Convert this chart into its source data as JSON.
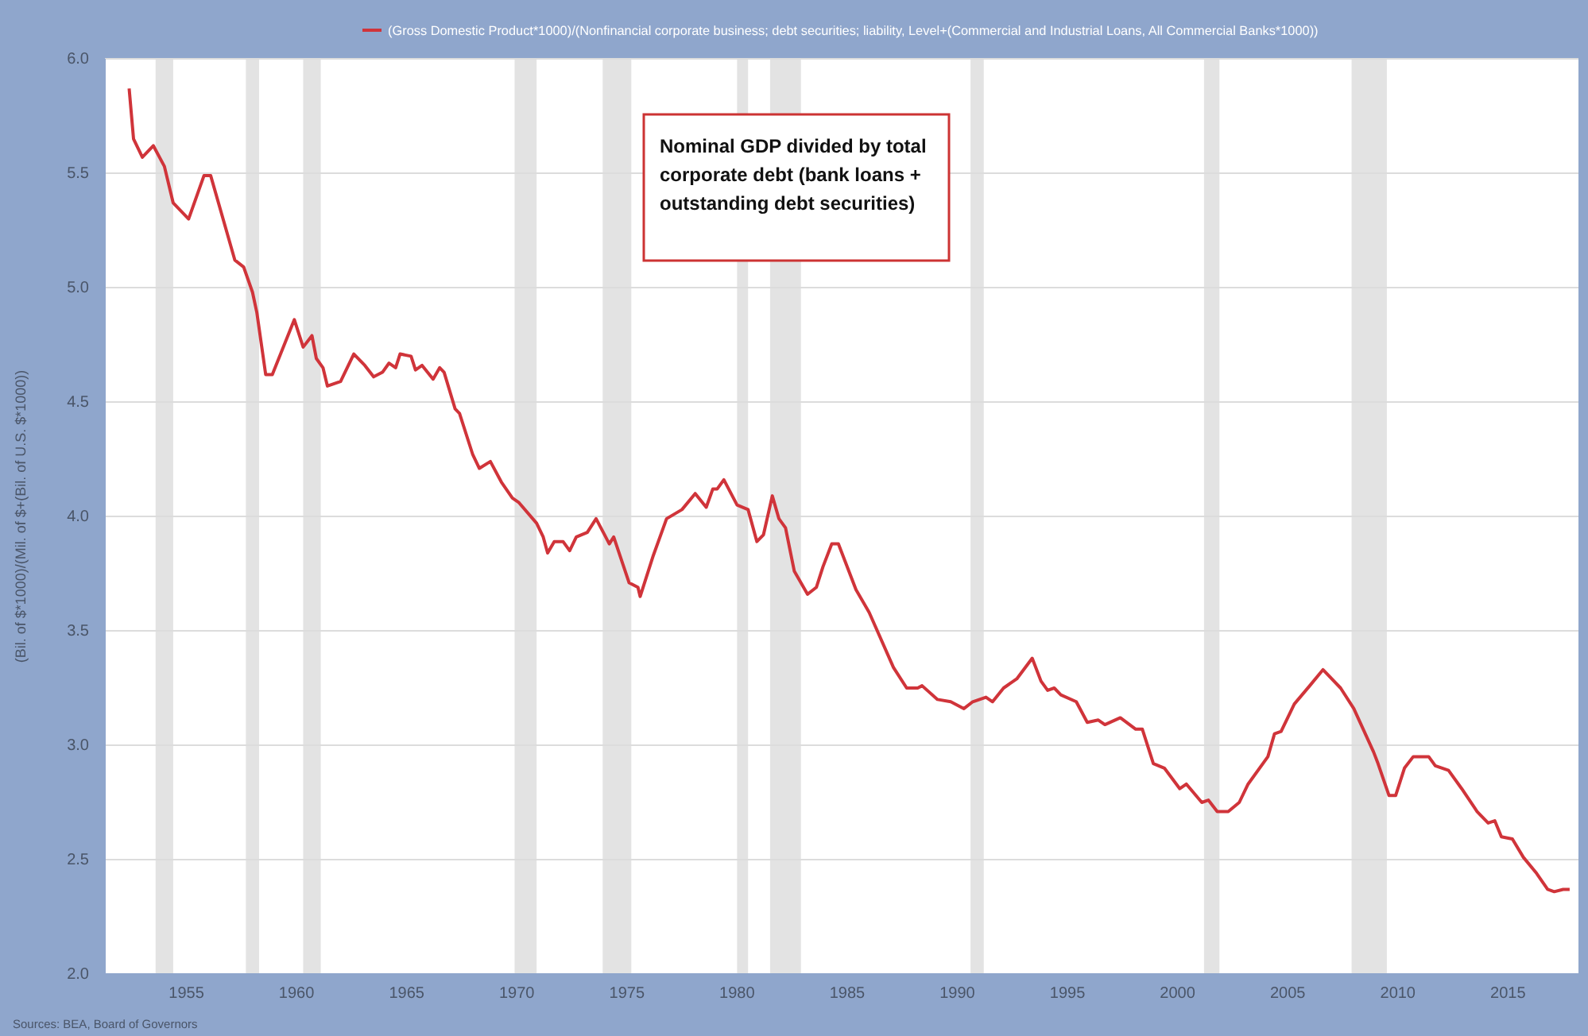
{
  "chart_data": {
    "type": "line",
    "ylabel": "(Bil. of $*1000)/(Mil. of $+(Bil. of U.S. $*1000))",
    "annotations": [
      "Nominal GDP divided by total corporate debt (bank loans + outstanding debt securities)",
      "Sources: BEA, Board of Governors"
    ],
    "x": [
      1952.4,
      1952.6,
      1953.0,
      1953.5,
      1954.0,
      1954.4,
      1955.1,
      1955.8,
      1956.1,
      1957.2,
      1957.6,
      1958.0,
      1958.2,
      1958.6,
      1958.9,
      1959.9,
      1960.3,
      1960.7,
      1960.9,
      1961.2,
      1961.4,
      1962.0,
      1962.6,
      1963.1,
      1963.5,
      1963.9,
      1964.2,
      1964.5,
      1964.7,
      1965.2,
      1965.4,
      1965.7,
      1966.2,
      1966.5,
      1966.7,
      1967.2,
      1967.4,
      1968.0,
      1968.3,
      1968.8,
      1969.3,
      1969.8,
      1970.1,
      1970.9,
      1971.2,
      1971.4,
      1971.7,
      1972.1,
      1972.4,
      1972.7,
      1973.2,
      1973.6,
      1974.2,
      1974.4,
      1975.1,
      1975.5,
      1975.6,
      1976.2,
      1976.8,
      1977.5,
      1978.1,
      1978.6,
      1978.9,
      1979.1,
      1979.4,
      1980.0,
      1980.5,
      1980.9,
      1981.2,
      1981.6,
      1981.9,
      1982.2,
      1982.6,
      1983.2,
      1983.6,
      1983.9,
      1984.3,
      1984.6,
      1985.4,
      1986.0,
      1987.1,
      1987.7,
      1988.2,
      1988.4,
      1989.1,
      1989.7,
      1990.3,
      1990.7,
      1991.3,
      1991.6,
      1992.1,
      1992.7,
      1993.4,
      1993.8,
      1994.1,
      1994.4,
      1994.7,
      1995.4,
      1995.9,
      1996.4,
      1996.7,
      1997.4,
      1998.1,
      1998.4,
      1998.9,
      1999.4,
      2000.1,
      2000.4,
      2001.1,
      2001.4,
      2001.8,
      2002.3,
      2002.8,
      2003.2,
      2004.1,
      2004.4,
      2004.7,
      2005.3,
      2006.0,
      2006.6,
      2007.4,
      2008.0,
      2008.9,
      2009.1,
      2009.6,
      2009.9,
      2010.3,
      2010.7,
      2011.0,
      2011.4,
      2011.7,
      2012.3,
      2012.9,
      2013.6,
      2014.1,
      2014.4,
      2014.7,
      2015.2,
      2015.7,
      2016.3,
      2016.8,
      2017.1,
      2017.5,
      2017.8
    ],
    "series": [
      {
        "name": "(Gross Domestic Product*1000)/(Nonfinancial corporate business; debt securities; liability, Level+(Commercial and Industrial Loans, All Commercial Banks*1000))",
        "color": "#d0343a",
        "values": [
          5.87,
          5.65,
          5.57,
          5.62,
          5.53,
          5.37,
          5.3,
          5.49,
          5.49,
          5.12,
          5.09,
          4.98,
          4.89,
          4.62,
          4.62,
          4.86,
          4.74,
          4.79,
          4.69,
          4.65,
          4.57,
          4.59,
          4.71,
          4.66,
          4.61,
          4.63,
          4.67,
          4.65,
          4.71,
          4.7,
          4.64,
          4.66,
          4.6,
          4.65,
          4.63,
          4.47,
          4.45,
          4.27,
          4.21,
          4.24,
          4.15,
          4.08,
          4.06,
          3.97,
          3.91,
          3.84,
          3.89,
          3.89,
          3.85,
          3.91,
          3.93,
          3.99,
          3.88,
          3.91,
          3.71,
          3.69,
          3.65,
          3.83,
          3.99,
          4.03,
          4.1,
          4.04,
          4.12,
          4.12,
          4.16,
          4.05,
          4.03,
          3.89,
          3.92,
          4.09,
          3.99,
          3.95,
          3.76,
          3.66,
          3.69,
          3.78,
          3.88,
          3.88,
          3.68,
          3.58,
          3.34,
          3.25,
          3.25,
          3.26,
          3.2,
          3.19,
          3.16,
          3.19,
          3.21,
          3.19,
          3.25,
          3.29,
          3.38,
          3.28,
          3.24,
          3.25,
          3.22,
          3.19,
          3.1,
          3.11,
          3.09,
          3.12,
          3.07,
          3.07,
          2.92,
          2.9,
          2.81,
          2.83,
          2.75,
          2.76,
          2.71,
          2.71,
          2.75,
          2.83,
          2.95,
          3.05,
          3.06,
          3.18,
          3.26,
          3.33,
          3.25,
          3.16,
          2.97,
          2.92,
          2.78,
          2.78,
          2.9,
          2.95,
          2.95,
          2.95,
          2.91,
          2.89,
          2.81,
          2.71,
          2.66,
          2.67,
          2.6,
          2.59,
          2.51,
          2.44,
          2.37,
          2.36,
          2.37,
          2.37
        ]
      }
    ],
    "xlim": [
      1951.3,
      2018.2
    ],
    "xticks": [
      1955,
      1960,
      1965,
      1970,
      1975,
      1980,
      1985,
      1990,
      1995,
      2000,
      2005,
      2010,
      2015
    ],
    "ylim": [
      2.0,
      6.0
    ],
    "yticks": [
      {
        "value": 2.0,
        "label": "2.0"
      },
      2.5,
      {
        "value": 3.0,
        "label": "3.0"
      },
      3.5,
      {
        "value": 4.0,
        "label": "4.0"
      },
      4.5,
      {
        "value": 5.0,
        "label": "5.0"
      },
      5.5,
      {
        "value": 6.0,
        "label": "6.0"
      }
    ],
    "bands": [
      {
        "axis": "x",
        "from": 1953.6,
        "to": 1954.4,
        "color": "#e3e3e3"
      },
      {
        "axis": "x",
        "from": 1957.7,
        "to": 1958.3,
        "color": "#e3e3e3"
      },
      {
        "axis": "x",
        "from": 1960.3,
        "to": 1961.1,
        "color": "#e3e3e3"
      },
      {
        "axis": "x",
        "from": 1969.9,
        "to": 1970.9,
        "color": "#e3e3e3"
      },
      {
        "axis": "x",
        "from": 1973.9,
        "to": 1975.2,
        "color": "#e3e3e3"
      },
      {
        "axis": "x",
        "from": 1980.0,
        "to": 1980.5,
        "color": "#e3e3e3"
      },
      {
        "axis": "x",
        "from": 1981.5,
        "to": 1982.9,
        "color": "#e3e3e3"
      },
      {
        "axis": "x",
        "from": 1990.6,
        "to": 1991.2,
        "color": "#e3e3e3"
      },
      {
        "axis": "x",
        "from": 2001.2,
        "to": 2001.9,
        "color": "#e3e3e3"
      },
      {
        "axis": "x",
        "from": 2007.9,
        "to": 2009.5,
        "color": "#e3e3e3"
      }
    ],
    "grid": "y",
    "legend": "top",
    "marker": "none",
    "line_style": "solid"
  }
}
